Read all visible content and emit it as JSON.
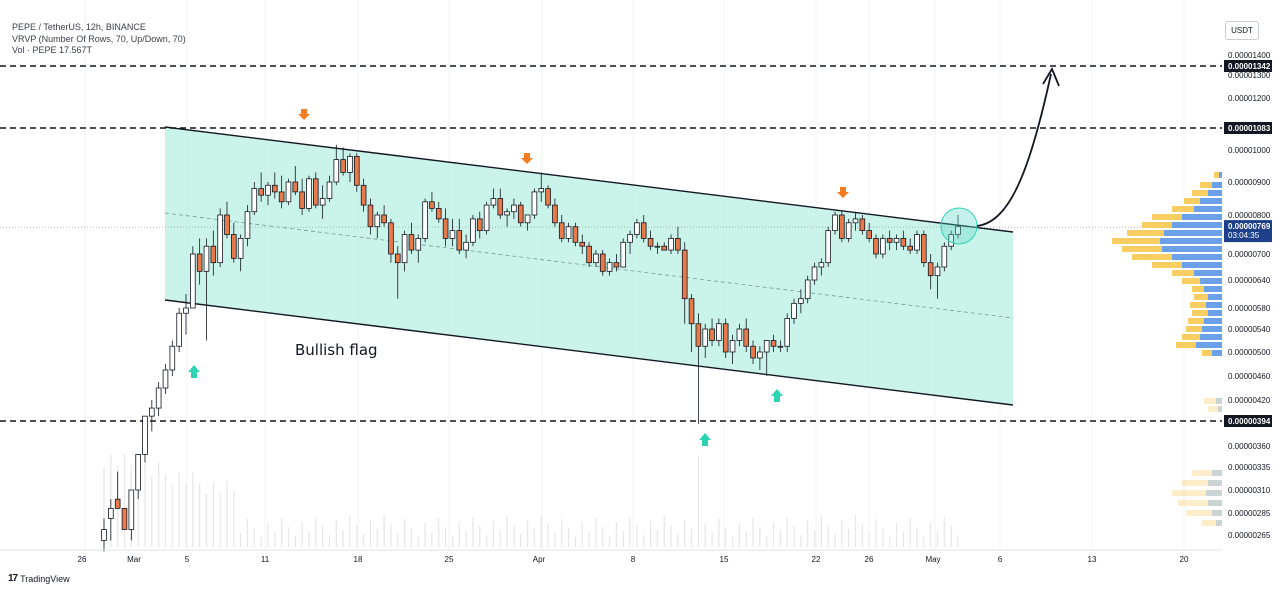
{
  "header": {
    "symbol_line": "PEPE / TetherUS, 12h, BINANCE",
    "indicator_line": "VRVP (Number Of Rows, 70, Up/Down, 70)",
    "volume_line": "Vol · PEPE 17.567T"
  },
  "currency_button": "USDT",
  "brand": {
    "icon": "tradingview-logo-icon",
    "label": "TradingView"
  },
  "colors": {
    "up": "#ffffff",
    "down": "#e8794a",
    "channel_fill": "#b8f0e3",
    "arrow_down": "#f57c20",
    "arrow_up": "#2dd4b4",
    "volume": "#eeeeee",
    "profile_up": "#5b9cf6",
    "profile_down": "#f7c548"
  },
  "chart_data": {
    "type": "candlestick",
    "title": "",
    "annotation": "Bullish flag",
    "ylim": [
      2.5e-06,
      1.41e-05
    ],
    "y_ticks": [
      "0.00001400",
      "0.00001300",
      "0.00001200",
      "0.00001000",
      "0.00000900",
      "0.00000800",
      "0.00000700",
      "0.00000640",
      "0.00000580",
      "0.00000540",
      "0.00000500",
      "0.00000460",
      "0.00000420",
      "0.00000360",
      "0.00000335",
      "0.00000310",
      "0.00000285",
      "0.00000265"
    ],
    "x_ticks": [
      "26",
      "Mar",
      "5",
      "11",
      "18",
      "25",
      "Apr",
      "8",
      "15",
      "22",
      "26",
      "May",
      "6",
      "13",
      "20"
    ],
    "horizontal_levels": [
      {
        "label": "0.00001342",
        "value": 1.342e-05
      },
      {
        "label": "0.00001083",
        "value": 1.083e-05
      },
      {
        "label": "0.00000394",
        "value": 3.94e-06
      }
    ],
    "current_price": {
      "label": "0.00000769",
      "countdown": "03:04:35",
      "value": 7.69e-06
    },
    "candles": [
      [
        2.6e-06,
        2.8e-06,
        2.5e-06,
        2.7e-06
      ],
      [
        2.8e-06,
        3e-06,
        2.6e-06,
        2.9e-06
      ],
      [
        3e-06,
        3.3e-06,
        2.9e-06,
        2.9e-06
      ],
      [
        2.9e-06,
        2.9e-06,
        2.7e-06,
        2.7e-06
      ],
      [
        2.7e-06,
        3.1e-06,
        2.6e-06,
        3.1e-06
      ],
      [
        3.1e-06,
        3.5e-06,
        3e-06,
        3.5e-06
      ],
      [
        3.5e-06,
        4e-06,
        3.4e-06,
        4e-06
      ],
      [
        4e-06,
        4.2e-06,
        3.8e-06,
        4.1e-06
      ],
      [
        4.1e-06,
        4.5e-06,
        4e-06,
        4.4e-06
      ],
      [
        4.4e-06,
        4.8e-06,
        4.3e-06,
        4.7e-06
      ],
      [
        4.7e-06,
        5.2e-06,
        4.6e-06,
        5.1e-06
      ],
      [
        5.1e-06,
        5.8e-06,
        5e-06,
        5.7e-06
      ],
      [
        5.7e-06,
        6.1e-06,
        5.3e-06,
        5.8e-06
      ],
      [
        5.8e-06,
        7.2e-06,
        5.8e-06,
        7e-06
      ],
      [
        7e-06,
        7.4e-06,
        6.3e-06,
        6.6e-06
      ],
      [
        6.6e-06,
        7.4e-06,
        5.2e-06,
        7.2e-06
      ],
      [
        7.2e-06,
        7.6e-06,
        6.5e-06,
        6.8e-06
      ],
      [
        6.8e-06,
        8.2e-06,
        6.7e-06,
        8e-06
      ],
      [
        8e-06,
        8.4e-06,
        7.4e-06,
        7.5e-06
      ],
      [
        7.5e-06,
        7.8e-06,
        6.8e-06,
        6.9e-06
      ],
      [
        6.9e-06,
        7.5e-06,
        6.6e-06,
        7.4e-06
      ],
      [
        7.4e-06,
        8.3e-06,
        7.2e-06,
        8.1e-06
      ],
      [
        8.1e-06,
        9e-06,
        8e-06,
        8.8e-06
      ],
      [
        8.8e-06,
        9.3e-06,
        8.4e-06,
        8.6e-06
      ],
      [
        8.6e-06,
        9e-06,
        8.3e-06,
        8.9e-06
      ],
      [
        8.9e-06,
        9.3e-06,
        8.5e-06,
        8.7e-06
      ],
      [
        8.7e-06,
        9.2e-06,
        8.2e-06,
        8.4e-06
      ],
      [
        8.4e-06,
        9.1e-06,
        8.3e-06,
        9e-06
      ],
      [
        9e-06,
        9.5e-06,
        8.6e-06,
        8.7e-06
      ],
      [
        8.7e-06,
        9.1e-06,
        8e-06,
        8.2e-06
      ],
      [
        8.2e-06,
        9.2e-06,
        8.1e-06,
        9.1e-06
      ],
      [
        9.1e-06,
        9.3e-06,
        8.2e-06,
        8.3e-06
      ],
      [
        8.3e-06,
        8.9e-06,
        7.9e-06,
        8.5e-06
      ],
      [
        8.5e-06,
        9.2e-06,
        8.4e-06,
        9e-06
      ],
      [
        9e-06,
        1.02e-05,
        8.9e-06,
        9.7e-06
      ],
      [
        9.7e-06,
        1.01e-05,
        9.2e-06,
        9.3e-06
      ],
      [
        9.3e-06,
        9.9e-06,
        9e-06,
        9.8e-06
      ],
      [
        9.8e-06,
        9.9e-06,
        8.7e-06,
        8.9e-06
      ],
      [
        8.9e-06,
        9.1e-06,
        8.1e-06,
        8.3e-06
      ],
      [
        8.3e-06,
        8.5e-06,
        7.5e-06,
        7.7e-06
      ],
      [
        7.7e-06,
        8.1e-06,
        7.4e-06,
        8e-06
      ],
      [
        8e-06,
        8.3e-06,
        7.7e-06,
        7.8e-06
      ],
      [
        7.8e-06,
        7.9e-06,
        6.8e-06,
        7e-06
      ],
      [
        7e-06,
        7.2e-06,
        6e-06,
        6.8e-06
      ],
      [
        6.8e-06,
        7.6e-06,
        6.6e-06,
        7.5e-06
      ],
      [
        7.5e-06,
        7.8e-06,
        7e-06,
        7.1e-06
      ],
      [
        7.1e-06,
        7.5e-06,
        6.8e-06,
        7.4e-06
      ],
      [
        7.4e-06,
        8.5e-06,
        7.3e-06,
        8.4e-06
      ],
      [
        8.4e-06,
        8.7e-06,
        8.1e-06,
        8.2e-06
      ],
      [
        8.2e-06,
        8.4e-06,
        7.8e-06,
        7.9e-06
      ],
      [
        7.9e-06,
        8.2e-06,
        7.2e-06,
        7.4e-06
      ],
      [
        7.4e-06,
        7.9e-06,
        7.2e-06,
        7.6e-06
      ],
      [
        7.6e-06,
        7.9e-06,
        7e-06,
        7.1e-06
      ],
      [
        7.1e-06,
        7.5e-06,
        6.9e-06,
        7.3e-06
      ],
      [
        7.3e-06,
        8e-06,
        7.2e-06,
        7.9e-06
      ],
      [
        7.9e-06,
        8.1e-06,
        7.4e-06,
        7.6e-06
      ],
      [
        7.6e-06,
        8.4e-06,
        7.5e-06,
        8.3e-06
      ],
      [
        8.3e-06,
        8.8e-06,
        8.2e-06,
        8.5e-06
      ],
      [
        8.5e-06,
        8.8e-06,
        7.9e-06,
        8e-06
      ],
      [
        8e-06,
        8.2e-06,
        7.7e-06,
        8.1e-06
      ],
      [
        8.1e-06,
        8.5e-06,
        7.9e-06,
        8.3e-06
      ],
      [
        8.3e-06,
        8.4e-06,
        7.7e-06,
        7.8e-06
      ],
      [
        7.8e-06,
        8e-06,
        7.6e-06,
        8e-06
      ],
      [
        8e-06,
        8.8e-06,
        7.9e-06,
        8.7e-06
      ],
      [
        8.7e-06,
        9.3e-06,
        8.4e-06,
        8.8e-06
      ],
      [
        8.8e-06,
        8.9e-06,
        8.2e-06,
        8.3e-06
      ],
      [
        8.3e-06,
        8.5e-06,
        7.7e-06,
        7.8e-06
      ],
      [
        7.8e-06,
        8e-06,
        7.3e-06,
        7.4e-06
      ],
      [
        7.4e-06,
        7.8e-06,
        7.3e-06,
        7.7e-06
      ],
      [
        7.7e-06,
        7.8e-06,
        7.2e-06,
        7.3e-06
      ],
      [
        7.3e-06,
        7.5e-06,
        7e-06,
        7.2e-06
      ],
      [
        7.2e-06,
        7.3e-06,
        6.7e-06,
        6.8e-06
      ],
      [
        6.8e-06,
        7.1e-06,
        6.7e-06,
        7e-06
      ],
      [
        7e-06,
        7.1e-06,
        6.5e-06,
        6.6e-06
      ],
      [
        6.6e-06,
        6.9e-06,
        6.5e-06,
        6.8e-06
      ],
      [
        6.8e-06,
        7e-06,
        6.6e-06,
        6.7e-06
      ],
      [
        6.7e-06,
        7.4e-06,
        6.7e-06,
        7.3e-06
      ],
      [
        7.3e-06,
        7.6e-06,
        7e-06,
        7.5e-06
      ],
      [
        7.5e-06,
        7.9e-06,
        7.4e-06,
        7.8e-06
      ],
      [
        7.8e-06,
        8e-06,
        7.3e-06,
        7.4e-06
      ],
      [
        7.4e-06,
        7.6e-06,
        7.1e-06,
        7.2e-06
      ],
      [
        7.2e-06,
        7.3e-06,
        7e-06,
        7.2e-06
      ],
      [
        7.2e-06,
        7.3e-06,
        7.1e-06,
        7.1e-06
      ],
      [
        7.1e-06,
        7.5e-06,
        7e-06,
        7.4e-06
      ],
      [
        7.4e-06,
        7.7e-06,
        7e-06,
        7.1e-06
      ],
      [
        7.1e-06,
        7.3e-06,
        5.5e-06,
        6e-06
      ],
      [
        6e-06,
        6.1e-06,
        5e-06,
        5.5e-06
      ],
      [
        5.5e-06,
        5.7e-06,
        3.9e-06,
        5.1e-06
      ],
      [
        5.1e-06,
        5.5e-06,
        4.9e-06,
        5.4e-06
      ],
      [
        5.4e-06,
        5.6e-06,
        5.1e-06,
        5.2e-06
      ],
      [
        5.2e-06,
        5.6e-06,
        5.1e-06,
        5.5e-06
      ],
      [
        5.5e-06,
        5.6e-06,
        4.9e-06,
        5e-06
      ],
      [
        5e-06,
        5.3e-06,
        4.8e-06,
        5.2e-06
      ],
      [
        5.2e-06,
        5.5e-06,
        5.1e-06,
        5.4e-06
      ],
      [
        5.4e-06,
        5.6e-06,
        5e-06,
        5.1e-06
      ],
      [
        5.1e-06,
        5.2e-06,
        4.8e-06,
        4.9e-06
      ],
      [
        4.9e-06,
        5.1e-06,
        4.7e-06,
        5e-06
      ],
      [
        5e-06,
        5.2e-06,
        4.6e-06,
        5.2e-06
      ],
      [
        5.2e-06,
        5.3e-06,
        5e-06,
        5.1e-06
      ],
      [
        5.1e-06,
        5.2e-06,
        5e-06,
        5.1e-06
      ],
      [
        5.1e-06,
        5.7e-06,
        5e-06,
        5.6e-06
      ],
      [
        5.6e-06,
        6e-06,
        5.5e-06,
        5.9e-06
      ],
      [
        5.9e-06,
        6.2e-06,
        5.7e-06,
        6e-06
      ],
      [
        6e-06,
        6.5e-06,
        5.9e-06,
        6.4e-06
      ],
      [
        6.4e-06,
        6.8e-06,
        6.3e-06,
        6.7e-06
      ],
      [
        6.7e-06,
        6.9e-06,
        6.5e-06,
        6.8e-06
      ],
      [
        6.8e-06,
        7.7e-06,
        6.7e-06,
        7.6e-06
      ],
      [
        7.6e-06,
        8.1e-06,
        7.5e-06,
        8e-06
      ],
      [
        8e-06,
        8.1e-06,
        7.3e-06,
        7.4e-06
      ],
      [
        7.4e-06,
        7.9e-06,
        7.3e-06,
        7.8e-06
      ],
      [
        7.8e-06,
        8.1e-06,
        7.6e-06,
        7.9e-06
      ],
      [
        7.9e-06,
        8e-06,
        7.5e-06,
        7.6e-06
      ],
      [
        7.6e-06,
        7.8e-06,
        7.3e-06,
        7.4e-06
      ],
      [
        7.4e-06,
        7.5e-06,
        6.9e-06,
        7e-06
      ],
      [
        7e-06,
        7.5e-06,
        6.9e-06,
        7.4e-06
      ],
      [
        7.4e-06,
        7.6e-06,
        7.1e-06,
        7.3e-06
      ],
      [
        7.3e-06,
        7.5e-06,
        7.1e-06,
        7.4e-06
      ],
      [
        7.4e-06,
        7.6e-06,
        7.1e-06,
        7.2e-06
      ],
      [
        7.2e-06,
        7.4e-06,
        7e-06,
        7.1e-06
      ],
      [
        7.1e-06,
        7.6e-06,
        7e-06,
        7.5e-06
      ],
      [
        7.5e-06,
        7.6e-06,
        6.7e-06,
        6.8e-06
      ],
      [
        6.8e-06,
        7e-06,
        6.2e-06,
        6.5e-06
      ],
      [
        6.5e-06,
        6.8e-06,
        6e-06,
        6.7e-06
      ],
      [
        6.7e-06,
        7.3e-06,
        6.6e-06,
        7.2e-06
      ],
      [
        7.2e-06,
        7.6e-06,
        7.1e-06,
        7.5e-06
      ],
      [
        7.5e-06,
        8e-06,
        7.4e-06,
        7.7e-06
      ]
    ],
    "projection_target": 1.342e-05
  }
}
